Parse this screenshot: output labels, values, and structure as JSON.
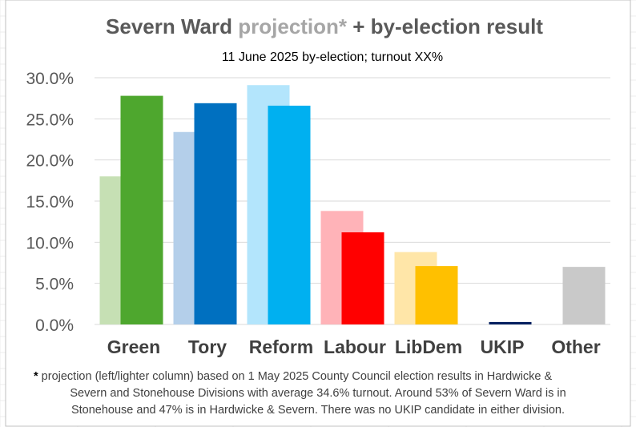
{
  "header": {
    "title_main": "Severn Ward ",
    "title_accent": "projection*",
    "title_rest": " + by-election result",
    "subtitle": "11 June 2025 by-election; turnout XX%"
  },
  "footnote": {
    "star": "*",
    "line1": " projection (left/lighter column) based on 1 May 2025 County Council election results in Hardwicke &",
    "line2": "Severn and Stonehouse Divisions with average 34.6% turnout. Around 53% of Severn Ward is in",
    "line3": "Stonehouse and 47% is in Hardwicke & Severn. There was no UKIP candidate in either division."
  },
  "chart_data": {
    "type": "bar",
    "categories": [
      "Green",
      "Tory",
      "Reform",
      "Labour",
      "LibDem",
      "UKIP",
      "Other"
    ],
    "series": [
      {
        "values": [
          18.0,
          23.4,
          29.1,
          13.8,
          8.8,
          null,
          null
        ],
        "colors": [
          "#c6e0b4",
          "#b4cfea",
          "#b3e5fc",
          "#ffb3b8",
          "#ffe6a8",
          "#bdd7ee",
          "#d9d9d9"
        ]
      },
      {
        "values": [
          27.8,
          26.9,
          26.6,
          11.2,
          7.1,
          0.3,
          7.0
        ],
        "colors": [
          "#4ea72e",
          "#0070c0",
          "#00b0f0",
          "#ff0000",
          "#ffc000",
          "#002060",
          "#c9c9c9"
        ]
      }
    ],
    "yticks": [
      "0.0%",
      "5.0%",
      "10.0%",
      "15.0%",
      "20.0%",
      "25.0%",
      "30.0%"
    ],
    "ylim": [
      0,
      30
    ],
    "grid": true,
    "legend": "none"
  }
}
